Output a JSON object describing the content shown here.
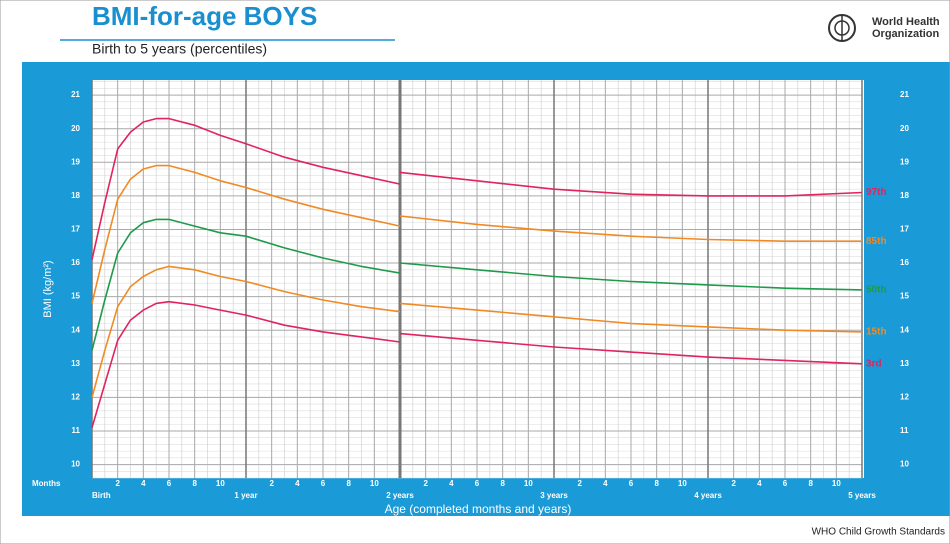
{
  "chart_data": {
    "type": "line",
    "title": "BMI-for-age BOYS",
    "subtitle": "Birth to 5 years (percentiles)",
    "organization": [
      "World Health",
      "Organization"
    ],
    "footer": "WHO Child Growth Standards",
    "xlabel": "Age (completed months and years)",
    "x_unit_label": "Months",
    "ylabel": "BMI (kg/m²)",
    "x": [
      0,
      1,
      2,
      3,
      4,
      5,
      6,
      8,
      10,
      12,
      15,
      18,
      21,
      24,
      24,
      24,
      30,
      36,
      42,
      48,
      54,
      60
    ],
    "series": [
      {
        "name": "97th",
        "color": "#e0245e",
        "values": [
          16.1,
          17.8,
          19.4,
          19.9,
          20.2,
          20.3,
          20.3,
          20.1,
          19.8,
          19.55,
          19.15,
          18.85,
          18.6,
          18.35,
          null,
          18.7,
          18.45,
          18.2,
          18.05,
          18.0,
          18.0,
          18.1
        ]
      },
      {
        "name": "85th",
        "color": "#f08a24",
        "values": [
          14.8,
          16.4,
          17.9,
          18.5,
          18.8,
          18.9,
          18.9,
          18.7,
          18.45,
          18.25,
          17.9,
          17.6,
          17.35,
          17.1,
          null,
          17.4,
          17.15,
          16.95,
          16.8,
          16.7,
          16.65,
          16.65
        ]
      },
      {
        "name": "50th",
        "color": "#1f9a4a",
        "values": [
          13.4,
          14.9,
          16.3,
          16.9,
          17.2,
          17.3,
          17.3,
          17.1,
          16.9,
          16.8,
          16.45,
          16.15,
          15.9,
          15.7,
          null,
          16.0,
          15.8,
          15.6,
          15.45,
          15.35,
          15.25,
          15.2
        ]
      },
      {
        "name": "15th",
        "color": "#f08a24",
        "values": [
          12.0,
          13.4,
          14.7,
          15.3,
          15.6,
          15.8,
          15.9,
          15.8,
          15.6,
          15.45,
          15.15,
          14.9,
          14.7,
          14.55,
          null,
          14.8,
          14.6,
          14.4,
          14.2,
          14.1,
          14.0,
          13.95
        ]
      },
      {
        "name": "3rd",
        "color": "#e0245e",
        "values": [
          11.1,
          12.4,
          13.7,
          14.3,
          14.6,
          14.8,
          14.85,
          14.75,
          14.6,
          14.45,
          14.15,
          13.95,
          13.8,
          13.65,
          null,
          13.9,
          13.7,
          13.5,
          13.35,
          13.2,
          13.1,
          13.0
        ]
      }
    ],
    "xlim": [
      0,
      60
    ],
    "xticks": [
      {
        "value": 0,
        "label": "Birth"
      },
      2,
      4,
      6,
      8,
      10,
      {
        "value": 12,
        "label": "1 year"
      },
      {
        "value": 14,
        "label": "2"
      },
      {
        "value": 16,
        "label": "4"
      },
      {
        "value": 18,
        "label": "6"
      },
      {
        "value": 20,
        "label": "8"
      },
      {
        "value": 22,
        "label": "10"
      },
      {
        "value": 24,
        "label": "2 years"
      },
      {
        "value": 26,
        "label": "2"
      },
      {
        "value": 28,
        "label": "4"
      },
      {
        "value": 30,
        "label": "6"
      },
      {
        "value": 32,
        "label": "8"
      },
      {
        "value": 34,
        "label": "10"
      },
      {
        "value": 36,
        "label": "3 years"
      },
      {
        "value": 38,
        "label": "2"
      },
      {
        "value": 40,
        "label": "4"
      },
      {
        "value": 42,
        "label": "6"
      },
      {
        "value": 44,
        "label": "8"
      },
      {
        "value": 46,
        "label": "10"
      },
      {
        "value": 48,
        "label": "4 years"
      },
      {
        "value": 50,
        "label": "2"
      },
      {
        "value": 52,
        "label": "4"
      },
      {
        "value": 54,
        "label": "6"
      },
      {
        "value": 56,
        "label": "8"
      },
      {
        "value": 58,
        "label": "10"
      },
      {
        "value": 60,
        "label": "5 years"
      }
    ],
    "ylim": [
      9.6,
      21.45
    ],
    "yticks": [
      10,
      11,
      12,
      13,
      14,
      15,
      16,
      17,
      18,
      19,
      20,
      21
    ],
    "y2lim": [
      9.6,
      21.45
    ],
    "y2ticks": [
      10,
      11,
      12,
      13,
      14,
      15,
      16,
      17,
      18,
      19,
      20,
      21
    ],
    "grid": true,
    "minor_grid": {
      "x": 1,
      "y": 0.2
    }
  }
}
